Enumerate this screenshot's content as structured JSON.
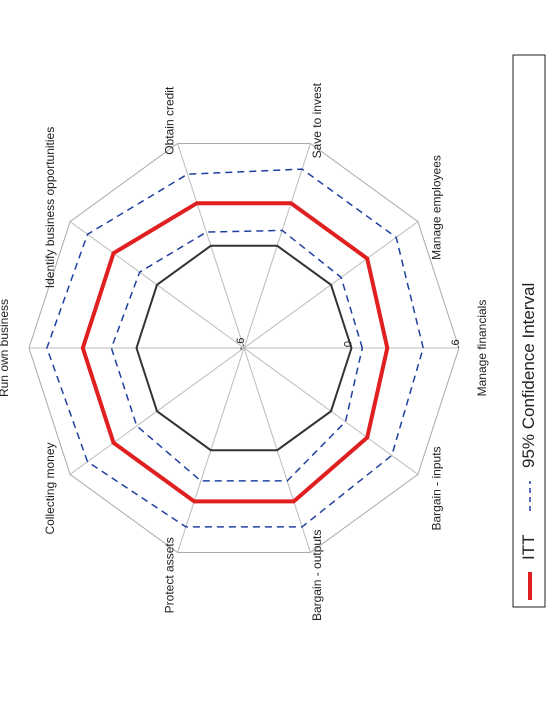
{
  "chart_data": {
    "type": "radar",
    "orientation": "rotated 90 degrees counter-clockwise",
    "axes": [
      "Manage financials",
      "Manage employees",
      "Save to invest",
      "Obtain credit",
      "Identify business opportunities",
      "Run own business",
      "Collecting money",
      "Protect assets",
      "Bargain - outputs",
      "Bargain - inputs"
    ],
    "axis_range": [
      -0.6,
      0.6
    ],
    "tick_labels": [
      "-.6",
      "0",
      ".6"
    ],
    "reference_ring_value": 0,
    "series": [
      {
        "name": "ITT",
        "line": "solid",
        "color": "#e02020",
        "values": [
          0.2,
          0.25,
          0.25,
          0.25,
          0.3,
          0.3,
          0.3,
          0.3,
          0.3,
          0.25
        ]
      },
      {
        "name": "95% Confidence Interval",
        "line": "dashed",
        "color": "#2040a0",
        "values": [
          0.4,
          0.45,
          0.45,
          0.42,
          0.48,
          0.5,
          0.48,
          0.45,
          0.45,
          0.42
        ]
      },
      {
        "name": "95% Confidence Interval lower",
        "line": "dashed",
        "color": "#2040a0",
        "values": [
          0.06,
          0.07,
          0.09,
          0.08,
          0.12,
          0.14,
          0.14,
          0.18,
          0.18,
          0.1
        ]
      }
    ],
    "legend": {
      "placement": "right",
      "entries": [
        {
          "label": "ITT",
          "line": "solid",
          "color": "#e02020"
        },
        {
          "label": "95% Confidence Interval",
          "line": "dashed",
          "color": "#2040a0"
        }
      ]
    },
    "grid": true
  }
}
